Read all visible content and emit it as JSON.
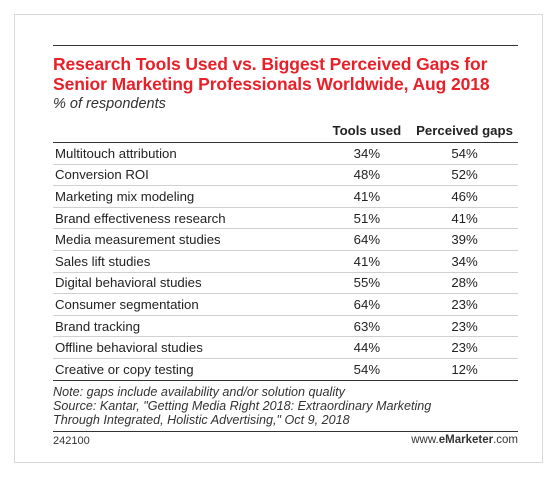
{
  "chart_data": {
    "type": "table",
    "title": "Research Tools Used vs. Biggest Perceived Gaps for Senior Marketing Professionals Worldwide, Aug 2018",
    "subtitle": "% of respondents",
    "columns": [
      "Tools used",
      "Perceived gaps"
    ],
    "rows": [
      {
        "label": "Multitouch attribution",
        "values": [
          "34%",
          "54%"
        ]
      },
      {
        "label": "Conversion ROI",
        "values": [
          "48%",
          "52%"
        ]
      },
      {
        "label": "Marketing mix modeling",
        "values": [
          "41%",
          "46%"
        ]
      },
      {
        "label": "Brand effectiveness research",
        "values": [
          "51%",
          "41%"
        ]
      },
      {
        "label": "Media measurement studies",
        "values": [
          "64%",
          "39%"
        ]
      },
      {
        "label": "Sales lift studies",
        "values": [
          "41%",
          "34%"
        ]
      },
      {
        "label": "Digital behavioral studies",
        "values": [
          "55%",
          "28%"
        ]
      },
      {
        "label": "Consumer segmentation",
        "values": [
          "64%",
          "23%"
        ]
      },
      {
        "label": "Brand tracking",
        "values": [
          "63%",
          "23%"
        ]
      },
      {
        "label": "Offline behavioral studies",
        "values": [
          "44%",
          "23%"
        ]
      },
      {
        "label": "Creative or copy testing",
        "values": [
          "54%",
          "12%"
        ]
      }
    ],
    "notes": [
      "Note: gaps include availability and/or solution quality",
      "Source: Kantar, \"Getting Media Right 2018: Extraordinary Marketing",
      "Through Integrated, Holistic Advertising,\" Oct 9, 2018"
    ]
  },
  "footer": {
    "id": "242100",
    "brand_prefix": "www.",
    "brand_bold": "eMarketer",
    "brand_suffix": ".com"
  },
  "colors": {
    "title": "#e8202a",
    "rule": "#333333",
    "divider": "#d0d0d0"
  }
}
